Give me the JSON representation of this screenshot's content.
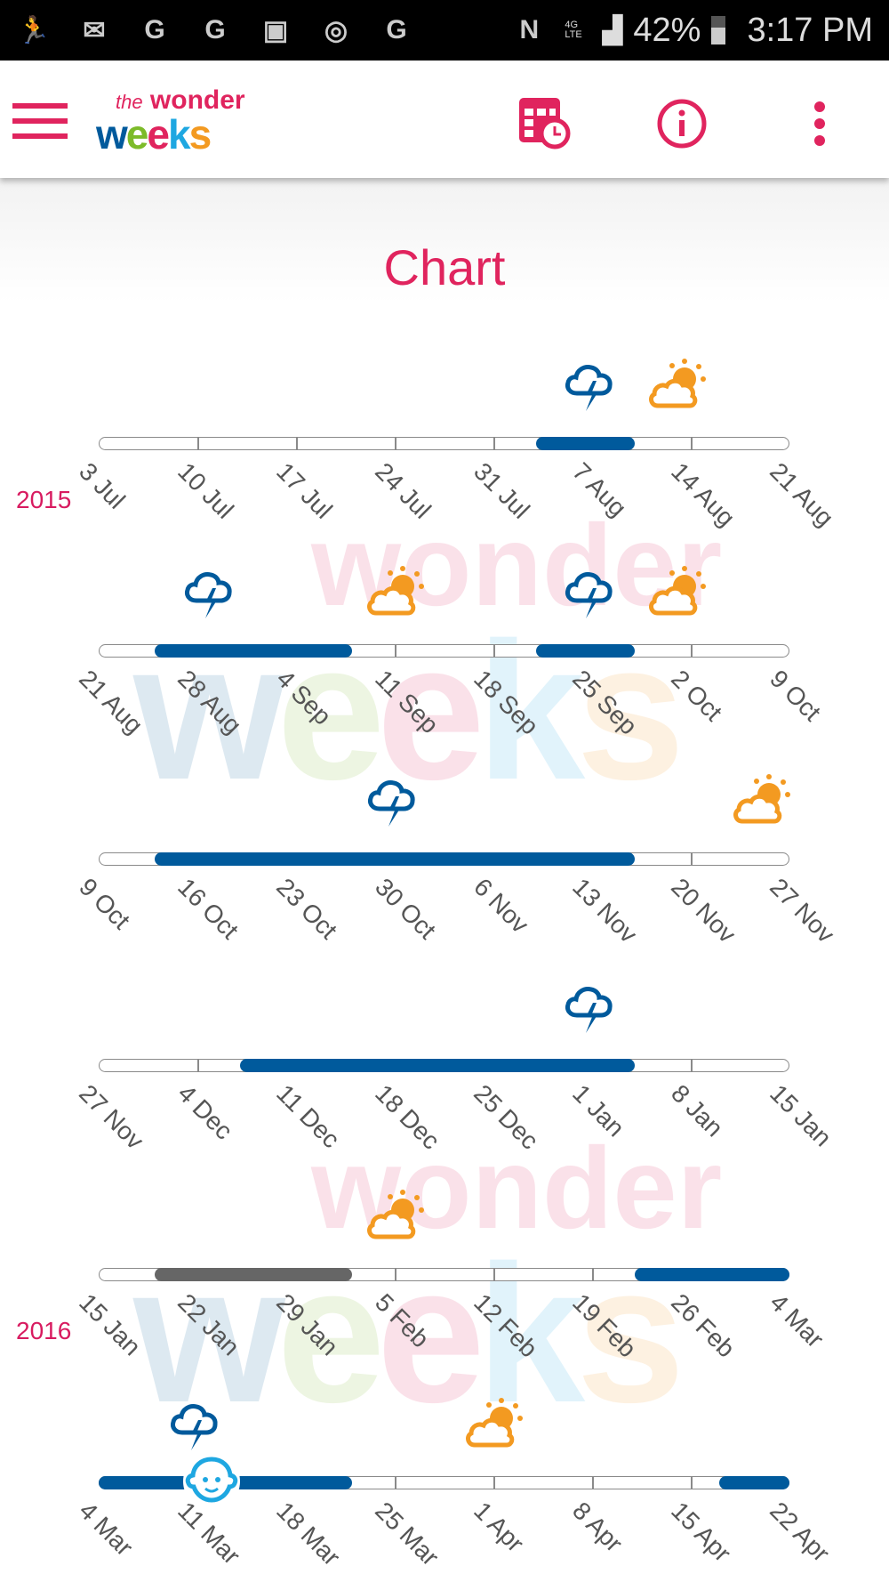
{
  "status_bar": {
    "battery": "42%",
    "time": "3:17 PM",
    "network": "4G LTE"
  },
  "app_bar": {
    "logo_text": "the wonder weeks",
    "icons": [
      "menu-icon",
      "calendar-clock-icon",
      "info-icon",
      "more-vert-icon"
    ]
  },
  "page": {
    "title": "Chart"
  },
  "colors": {
    "accent": "#e0245e",
    "leap": "#005a9c",
    "past_leap": "#666666",
    "sunny": "#f39a21",
    "baby": "#1ea7e1"
  },
  "chart_data": {
    "type": "timeline",
    "years": [
      {
        "label": "2015",
        "row": 0
      },
      {
        "label": "2016",
        "row": 4
      }
    ],
    "rows": [
      {
        "start": "2015-07-03",
        "ticks": [
          "3 Jul",
          "10 Jul",
          "17 Jul",
          "24 Jul",
          "31 Jul",
          "7 Aug",
          "14 Aug",
          "21 Aug"
        ],
        "periods": [
          {
            "from": "2015-08-03",
            "to": "2015-08-10",
            "kind": "leap"
          }
        ],
        "icons": [
          {
            "date": "2015-08-07",
            "kind": "stormy"
          },
          {
            "date": "2015-08-13",
            "kind": "sunny"
          }
        ]
      },
      {
        "start": "2015-08-21",
        "ticks": [
          "21 Aug",
          "28 Aug",
          "4 Sep",
          "11 Sep",
          "18 Sep",
          "25 Sep",
          "2 Oct",
          "9 Oct"
        ],
        "periods": [
          {
            "from": "2015-08-25",
            "to": "2015-09-08",
            "kind": "leap"
          },
          {
            "from": "2015-09-21",
            "to": "2015-09-28",
            "kind": "leap"
          }
        ],
        "icons": [
          {
            "date": "2015-08-29",
            "kind": "stormy"
          },
          {
            "date": "2015-09-11",
            "kind": "sunny"
          },
          {
            "date": "2015-09-25",
            "kind": "stormy"
          },
          {
            "date": "2015-10-01",
            "kind": "sunny"
          }
        ]
      },
      {
        "start": "2015-10-09",
        "ticks": [
          "9 Oct",
          "16 Oct",
          "23 Oct",
          "30 Oct",
          "6 Nov",
          "13 Nov",
          "20 Nov",
          "27 Nov"
        ],
        "periods": [
          {
            "from": "2015-10-13",
            "to": "2015-11-16",
            "kind": "leap"
          }
        ],
        "icons": [
          {
            "date": "2015-10-30",
            "kind": "stormy"
          },
          {
            "date": "2015-11-25",
            "kind": "sunny"
          }
        ]
      },
      {
        "start": "2015-11-27",
        "ticks": [
          "27 Nov",
          "4 Dec",
          "11 Dec",
          "18 Dec",
          "25 Dec",
          "1 Jan",
          "8 Jan",
          "15 Jan"
        ],
        "periods": [
          {
            "from": "2015-12-07",
            "to": "2016-01-04",
            "kind": "leap"
          }
        ],
        "icons": [
          {
            "date": "2016-01-01",
            "kind": "stormy"
          }
        ]
      },
      {
        "start": "2016-01-15",
        "ticks": [
          "15 Jan",
          "22 Jan",
          "29 Jan",
          "5 Feb",
          "12 Feb",
          "19 Feb",
          "26 Feb",
          "4 Mar"
        ],
        "periods": [
          {
            "from": "2016-01-19",
            "to": "2016-02-02",
            "kind": "past_leap"
          },
          {
            "from": "2016-02-22",
            "to": "2016-03-04",
            "kind": "leap"
          }
        ],
        "icons": [
          {
            "date": "2016-02-05",
            "kind": "sunny"
          }
        ]
      },
      {
        "start": "2016-03-04",
        "ticks": [
          "4 Mar",
          "11 Mar",
          "18 Mar",
          "25 Mar",
          "1 Apr",
          "8 Apr",
          "15 Apr",
          "22 Apr"
        ],
        "periods": [
          {
            "from": "2016-03-04",
            "to": "2016-03-22",
            "kind": "leap"
          },
          {
            "from": "2016-04-17",
            "to": "2016-04-22",
            "kind": "leap"
          }
        ],
        "icons": [
          {
            "date": "2016-03-11",
            "kind": "stormy"
          },
          {
            "date": "2016-04-01",
            "kind": "sunny"
          },
          {
            "date": "2016-03-12",
            "kind": "today-baby"
          }
        ]
      }
    ]
  }
}
